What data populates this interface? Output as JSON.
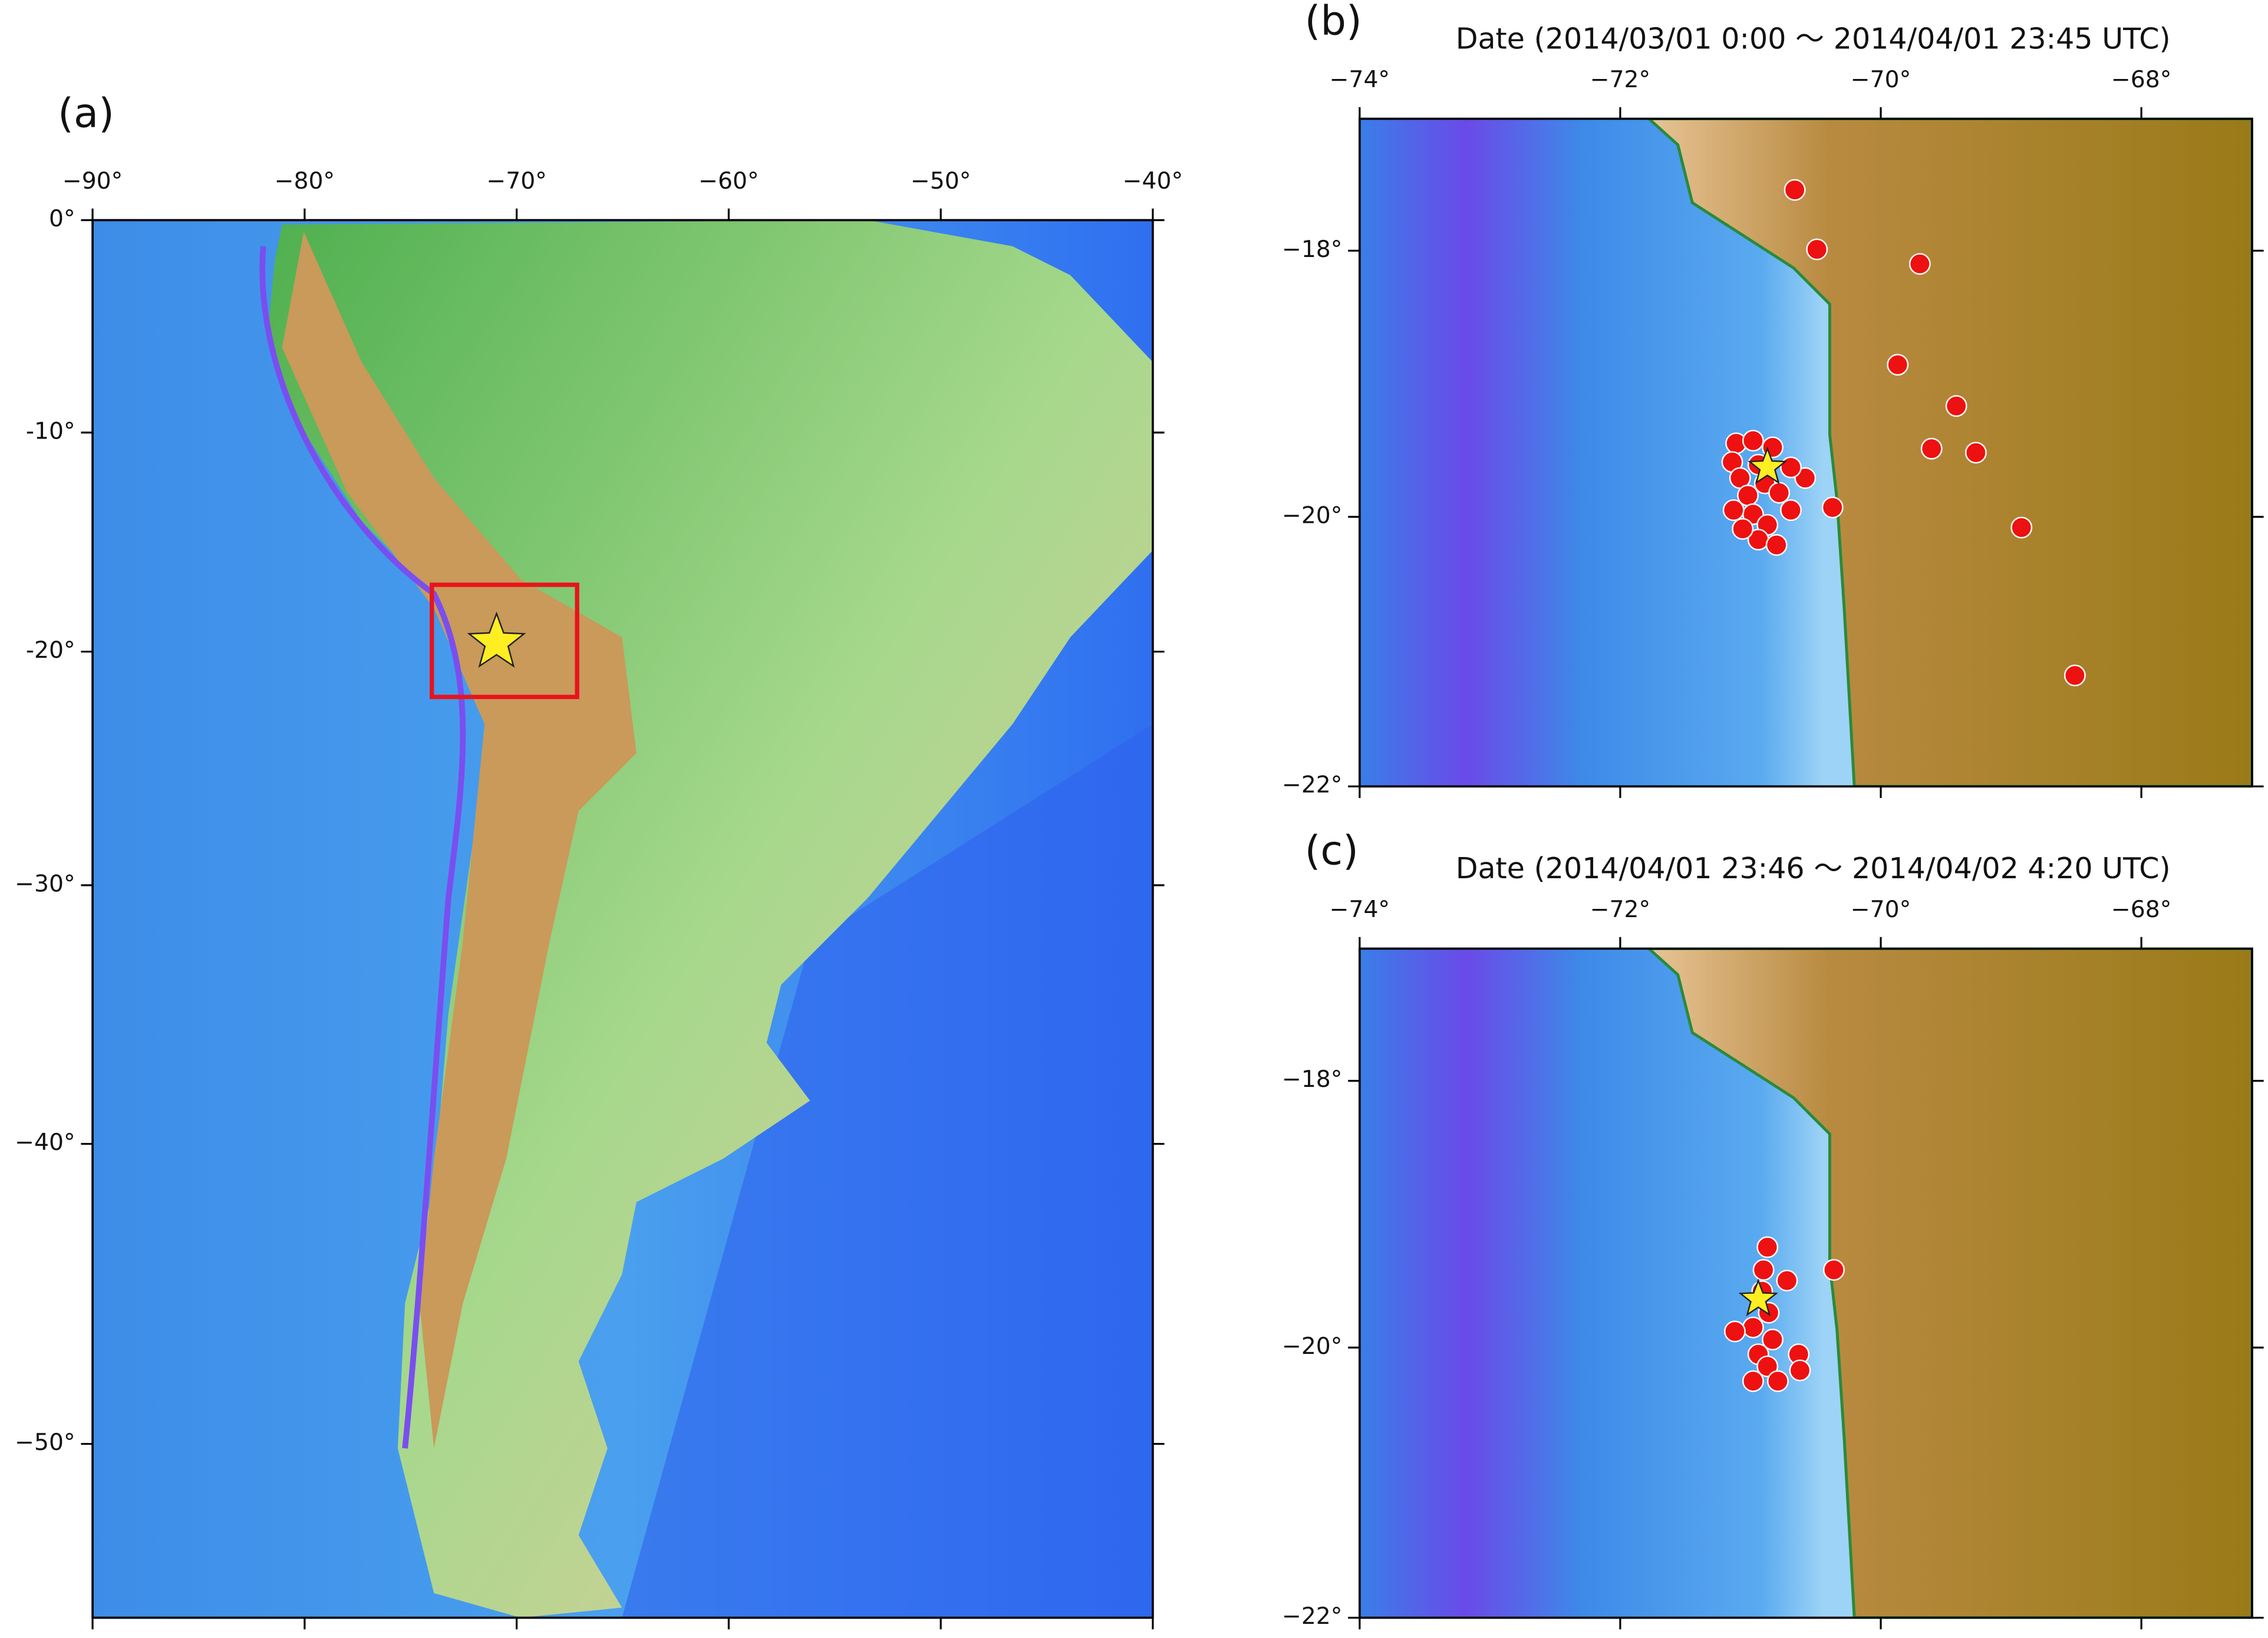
{
  "chart_data": [
    {
      "type": "scatter",
      "label": "(a)",
      "xlim": [
        -90,
        -40
      ],
      "ylim": [
        -55,
        0
      ],
      "xticks": [
        {
          "value": -90,
          "label": "−90°"
        },
        {
          "value": -80,
          "label": "−80°"
        },
        {
          "value": -70,
          "label": "−70°"
        },
        {
          "value": -60,
          "label": "−60°"
        },
        {
          "value": -50,
          "label": "−50°"
        },
        {
          "value": -40,
          "label": "−40°"
        }
      ],
      "yticks": [
        {
          "value": 0,
          "label": "0°"
        },
        {
          "value": -10,
          "label": "-10°"
        },
        {
          "value": -20,
          "label": "-20°"
        },
        {
          "value": -30,
          "label": "−30°"
        },
        {
          "value": -40,
          "label": "−40°"
        },
        {
          "value": -50,
          "label": "−50°"
        }
      ],
      "epicenter": {
        "x": -70.95,
        "y": -19.6,
        "color": "#ffee22"
      },
      "inset_color": "#e8141c"
    },
    {
      "type": "scatter",
      "label": "(b)",
      "title": "Date (2014/03/01 0:00 〜 2014/04/01 23:45 UTC)",
      "xlim": [
        -74,
        -67.15
      ],
      "ylim": [
        -22,
        -17
      ],
      "xticks": [
        {
          "value": -74,
          "label": "−74°"
        },
        {
          "value": -72,
          "label": "−72°"
        },
        {
          "value": -70,
          "label": "−70°"
        },
        {
          "value": -68,
          "label": "−68°"
        }
      ],
      "yticks": [
        {
          "value": -18,
          "label": "−18°"
        },
        {
          "value": -20,
          "label": "−20°"
        },
        {
          "value": -22,
          "label": "−22°"
        }
      ],
      "series": [
        {
          "color": "#ee1111",
          "x": [
            -70.66,
            -70.49,
            -69.7,
            -69.87,
            -69.42,
            -69.61,
            -69.27,
            -68.92,
            -68.51,
            -70.37,
            -70.58,
            -71.11,
            -70.98,
            -70.83,
            -71.14,
            -70.94,
            -70.69,
            -71.08,
            -70.89,
            -71.02,
            -70.78,
            -70.69,
            -70.98,
            -71.13,
            -70.87,
            -70.94,
            -70.8,
            -71.06
          ],
          "y": [
            -17.54,
            -17.99,
            -18.1,
            -18.86,
            -19.17,
            -19.49,
            -19.52,
            -20.08,
            -21.18,
            -19.93,
            -19.71,
            -19.45,
            -19.43,
            -19.48,
            -19.59,
            -19.61,
            -19.63,
            -19.71,
            -19.75,
            -19.84,
            -19.82,
            -19.95,
            -19.98,
            -19.95,
            -20.06,
            -20.17,
            -20.21,
            -20.09
          ]
        }
      ],
      "epicenter": {
        "x": -70.87,
        "y": -19.63,
        "color": "#ffee22"
      }
    },
    {
      "type": "scatter",
      "label": "(c)",
      "title": "Date (2014/04/01 23:46 〜 2014/04/02 4:20 UTC)",
      "xlim": [
        -74,
        -67.15
      ],
      "ylim": [
        -22,
        -17
      ],
      "xticks": [
        {
          "value": -74,
          "label": "−74°"
        },
        {
          "value": -72,
          "label": "−72°"
        },
        {
          "value": -70,
          "label": "−70°"
        },
        {
          "value": -68,
          "label": "−68°"
        }
      ],
      "yticks": [
        {
          "value": -18,
          "label": "−18°"
        },
        {
          "value": -20,
          "label": "−20°"
        },
        {
          "value": -22,
          "label": "−22°"
        }
      ],
      "series": [
        {
          "color": "#ee1111",
          "x": [
            -70.87,
            -70.9,
            -70.72,
            -70.36,
            -70.91,
            -70.86,
            -70.98,
            -71.12,
            -70.83,
            -70.94,
            -70.63,
            -70.87,
            -70.98,
            -70.79,
            -70.62
          ],
          "y": [
            -19.25,
            -19.42,
            -19.5,
            -19.42,
            -19.58,
            -19.74,
            -19.85,
            -19.88,
            -19.94,
            -20.05,
            -20.05,
            -20.14,
            -20.25,
            -20.25,
            -20.17
          ]
        }
      ],
      "epicenter": {
        "x": -70.94,
        "y": -19.64,
        "color": "#ffee22"
      }
    }
  ]
}
